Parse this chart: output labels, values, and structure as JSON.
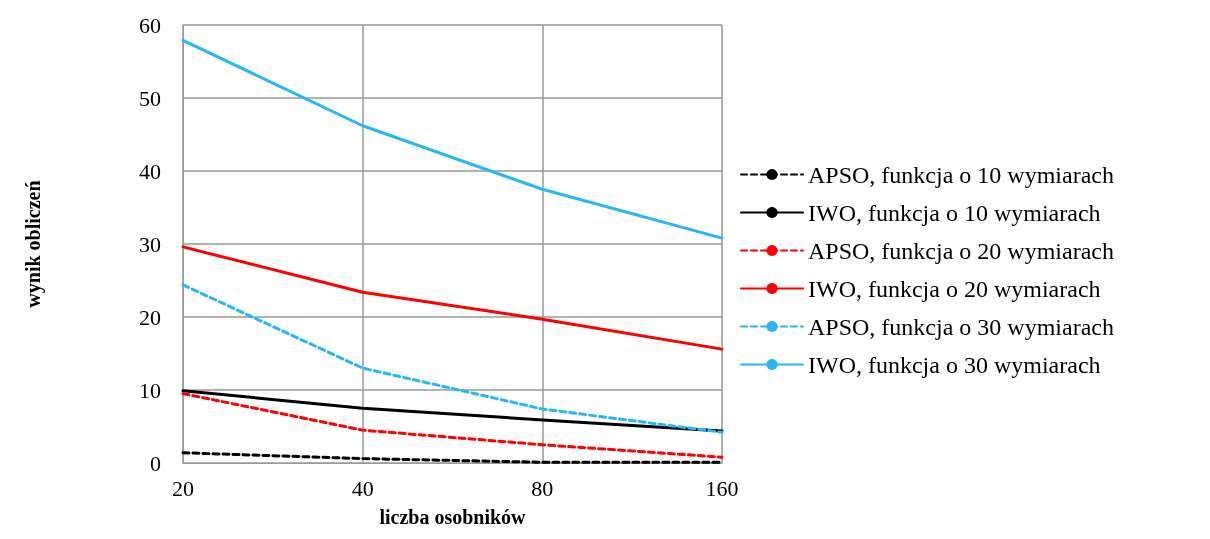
{
  "chart_data": {
    "type": "line",
    "xlabel": "liczba osobników",
    "ylabel": "wynik obliczeń",
    "categories": [
      "20",
      "40",
      "80",
      "160"
    ],
    "ylim": [
      0,
      60
    ],
    "yticks": [
      0,
      10,
      20,
      30,
      40,
      50,
      60
    ],
    "grid": true,
    "legend": "right",
    "marker": "none",
    "series": [
      {
        "name": "APSO, funkcja o 10 wymiarach",
        "color": "#000000",
        "line_style": "dashed",
        "values": [
          1.4,
          0.6,
          0.1,
          0.1
        ]
      },
      {
        "name": "IWO, funkcja o 10 wymiarach",
        "color": "#000000",
        "line_style": "solid",
        "values": [
          9.9,
          7.5,
          5.9,
          4.4
        ]
      },
      {
        "name": "APSO, funkcja o 20 wymiarach",
        "color": "#ff0000",
        "line_style": "dashed",
        "values": [
          9.5,
          4.5,
          2.5,
          0.8
        ]
      },
      {
        "name": "IWO, funkcja o 20 wymiarach",
        "color": "#ff0000",
        "line_style": "solid",
        "values": [
          29.6,
          23.4,
          19.7,
          15.6
        ]
      },
      {
        "name": "APSO, funkcja o 30 wymiarach",
        "color": "#29b6f6",
        "line_style": "dashed",
        "values": [
          24.4,
          13,
          7.4,
          4.2
        ]
      },
      {
        "name": "IWO, funkcja o 30 wymiarach",
        "color": "#29b6f6",
        "line_style": "solid",
        "values": [
          57.9,
          46.2,
          37.5,
          30.8
        ]
      }
    ]
  }
}
